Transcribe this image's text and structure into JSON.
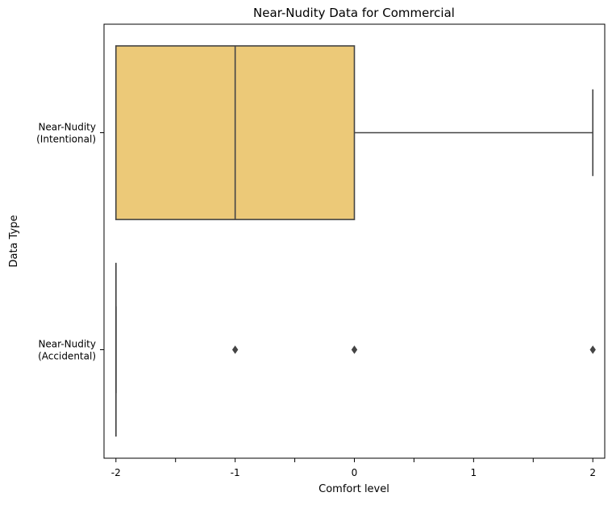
{
  "chart_data": {
    "type": "boxplot",
    "orientation": "horizontal",
    "title": "Near-Nudity Data for Commercial",
    "xlabel": "Comfort level",
    "ylabel": "Data Type",
    "xlim": [
      -2.1,
      2.1
    ],
    "x_ticks": [
      {
        "value": -2,
        "label": "-2"
      },
      {
        "value": -1.5,
        "label": ""
      },
      {
        "value": -1,
        "label": "-1"
      },
      {
        "value": -0.5,
        "label": ""
      },
      {
        "value": 0,
        "label": "0"
      },
      {
        "value": 0.5,
        "label": ""
      },
      {
        "value": 1,
        "label": "1"
      },
      {
        "value": 1.5,
        "label": ""
      },
      {
        "value": 2,
        "label": "2"
      }
    ],
    "categories": [
      {
        "label_lines": [
          "Near-Nudity",
          "(Intentional)"
        ],
        "whisker_low": -2,
        "q1": -2,
        "median": -1,
        "q3": 0,
        "whisker_high": 2,
        "outliers": []
      },
      {
        "label_lines": [
          "Near-Nudity",
          "(Accidental)"
        ],
        "whisker_low": -2,
        "q1": -2,
        "median": -2,
        "q3": -2,
        "whisker_high": -2,
        "outliers": [
          -1,
          0,
          2
        ]
      }
    ],
    "box_color": "#ecc978",
    "line_color": "#444444",
    "grid": false,
    "legend": "none"
  }
}
